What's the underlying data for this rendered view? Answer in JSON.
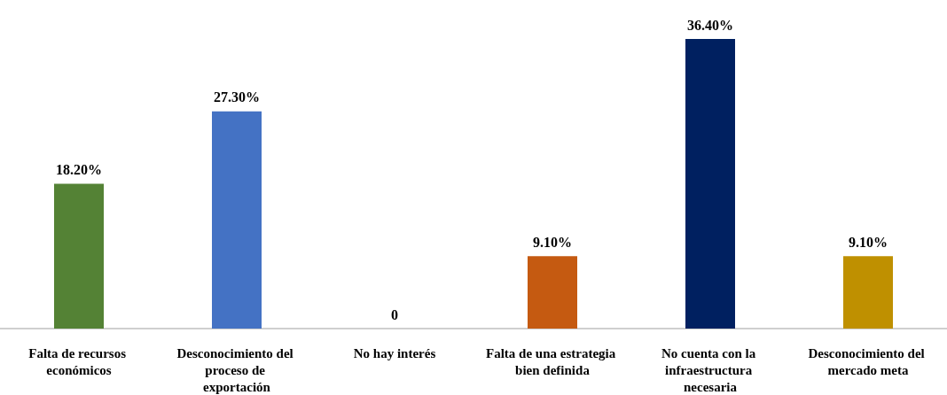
{
  "chart_data": {
    "type": "bar",
    "categories": [
      "Falta de recursos económicos",
      "Desconocimiento del proceso de exportación",
      "No hay interés",
      "Falta de una estrategia bien definida",
      "No cuenta con la infraestructura necesaria",
      "Desconocimiento del mercado meta"
    ],
    "values": [
      18.2,
      27.3,
      0,
      9.1,
      36.4,
      9.1
    ],
    "colors": [
      "#548235",
      "#4472c4",
      "#a5a5a5",
      "#c55a11",
      "#002060",
      "#bf9000"
    ],
    "value_labels": [
      "18.20%",
      "27.30%",
      "0",
      "9.10%",
      "36.40%",
      "9.10%"
    ]
  }
}
